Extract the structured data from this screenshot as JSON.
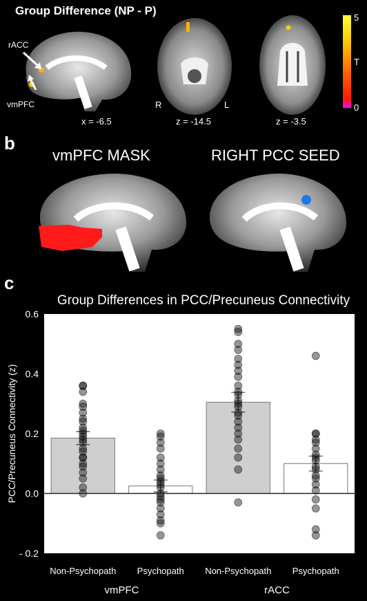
{
  "panel_a": {
    "title": "Group Difference (NP - P)",
    "labels": {
      "racc": "rACC",
      "vmpfc": "vmPFC",
      "right": "R",
      "left": "L"
    },
    "slices": [
      "x = -6.5",
      "z = -14.5",
      "z = -3.5"
    ],
    "colorbar": {
      "max": "5",
      "mid": "T",
      "min": "0",
      "colors": [
        "#ffff40",
        "#ff9900",
        "#ff2a00",
        "#ff00ff"
      ]
    }
  },
  "panel_b": {
    "letter": "b",
    "titles": [
      "vmPFC MASK",
      "RIGHT PCC SEED"
    ],
    "colors": {
      "mask": "#ff1a1a",
      "seed": "#1e78e8"
    }
  },
  "panel_c": {
    "letter": "c"
  },
  "chart_data": {
    "type": "bar",
    "title": "Group Differences in PCC/Precuneus Connectivity",
    "ylabel": "PCC/Precuneus Connectivity (z)",
    "ylim": [
      -0.2,
      0.6
    ],
    "yticks": [
      "- 0.2",
      "0.0",
      "0.2",
      "0.4",
      "0.6"
    ],
    "categories": [
      "Non-Psychopath",
      "Psychopath",
      "Non-Psychopath",
      "Psychopath"
    ],
    "groups": [
      "vmPFC",
      "rACC"
    ],
    "values": [
      0.185,
      0.025,
      0.305,
      0.1
    ],
    "errors": [
      0.022,
      0.02,
      0.033,
      0.025
    ],
    "bar_colors": [
      "#cfcfcf",
      "#ffffff",
      "#cfcfcf",
      "#ffffff"
    ],
    "points": [
      [
        0.36,
        0.36,
        0.34,
        0.3,
        0.29,
        0.27,
        0.25,
        0.24,
        0.22,
        0.21,
        0.2,
        0.19,
        0.18,
        0.17,
        0.15,
        0.14,
        0.12,
        0.12,
        0.1,
        0.09,
        0.07,
        0.05,
        0.02,
        0.0
      ],
      [
        0.2,
        0.19,
        0.17,
        0.15,
        0.12,
        0.1,
        0.08,
        0.06,
        0.05,
        0.04,
        0.03,
        0.02,
        0.0,
        -0.01,
        -0.02,
        -0.03,
        -0.05,
        -0.07,
        -0.09,
        -0.1,
        -0.14
      ],
      [
        0.55,
        0.54,
        0.5,
        0.48,
        0.45,
        0.43,
        0.41,
        0.39,
        0.36,
        0.34,
        0.33,
        0.31,
        0.3,
        0.29,
        0.27,
        0.26,
        0.24,
        0.22,
        0.2,
        0.18,
        0.15,
        0.12,
        0.08,
        -0.03
      ],
      [
        0.46,
        0.2,
        0.2,
        0.18,
        0.17,
        0.15,
        0.13,
        0.12,
        0.11,
        0.09,
        0.08,
        0.06,
        0.05,
        0.03,
        0.01,
        -0.02,
        -0.05,
        -0.12,
        -0.14
      ]
    ]
  }
}
